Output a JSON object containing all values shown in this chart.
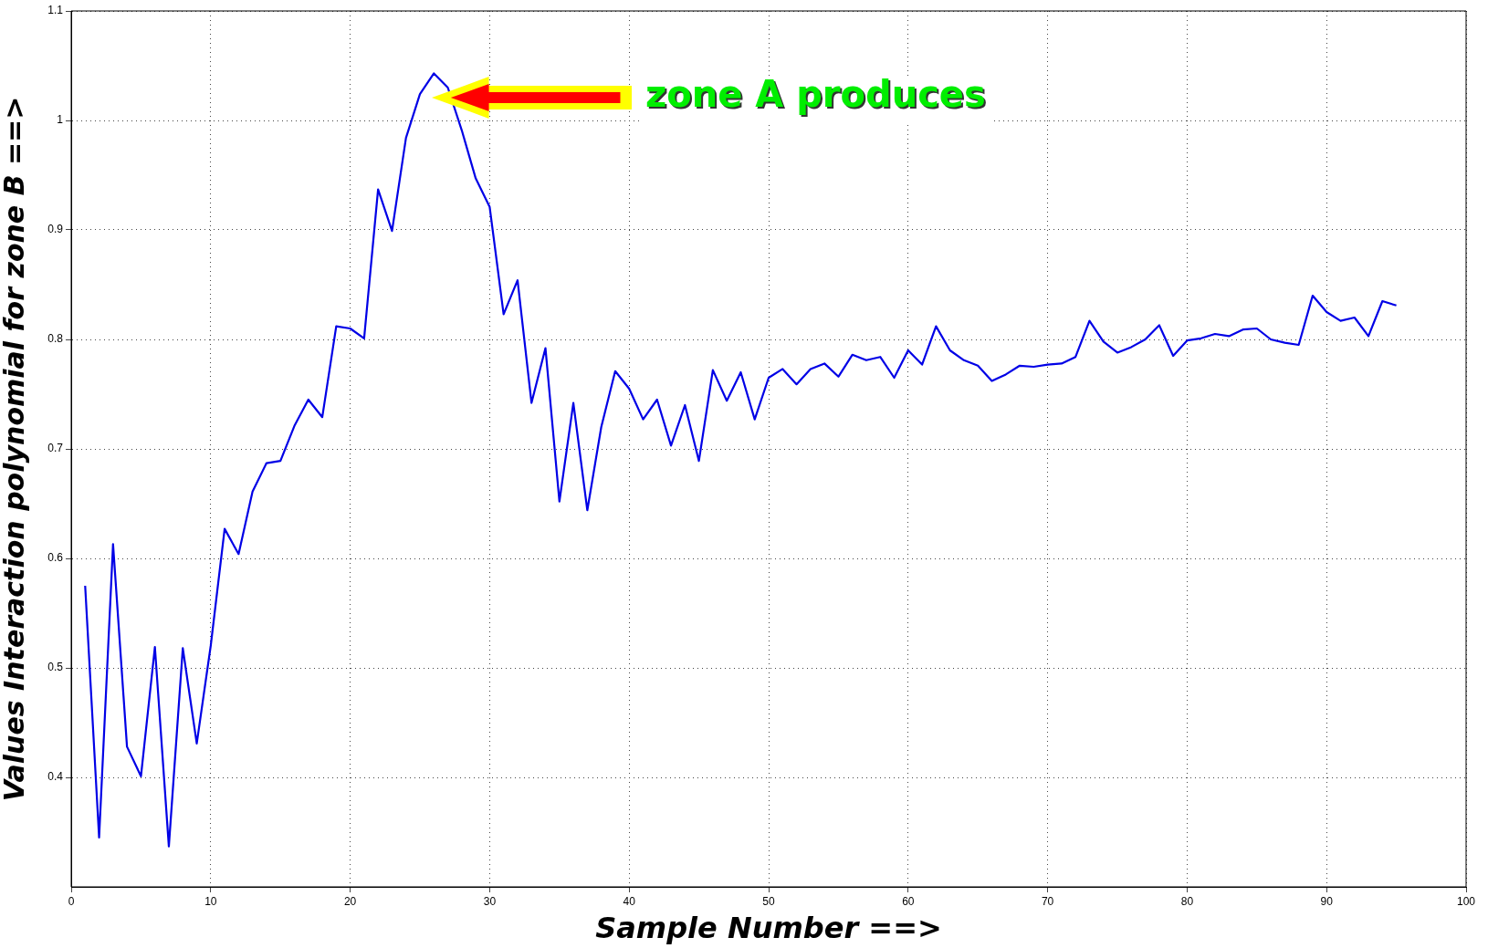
{
  "chart_data": {
    "type": "line",
    "xlabel": "Sample Number ==>",
    "ylabel": "Values Interaction polynomial for zone B ==>",
    "x": [
      1,
      2,
      3,
      4,
      5,
      6,
      7,
      8,
      9,
      10,
      11,
      12,
      13,
      14,
      15,
      16,
      17,
      18,
      19,
      20,
      21,
      22,
      23,
      24,
      25,
      26,
      27,
      28,
      29,
      30,
      31,
      32,
      33,
      34,
      35,
      36,
      37,
      38,
      39,
      40,
      41,
      42,
      43,
      44,
      45,
      46,
      47,
      48,
      49,
      50,
      51,
      52,
      53,
      54,
      55,
      56,
      57,
      58,
      59,
      60,
      61,
      62,
      63,
      64,
      65,
      66,
      67,
      68,
      69,
      70,
      71,
      72,
      73,
      74,
      75,
      76,
      77,
      78,
      79,
      80,
      81,
      82,
      83,
      84,
      85,
      86,
      87,
      88,
      89,
      90,
      91,
      92,
      93,
      94,
      95
    ],
    "series": [
      {
        "color": "#0000e6",
        "values": [
          0.575,
          0.345,
          0.613,
          0.428,
          0.401,
          0.519,
          0.337,
          0.518,
          0.431,
          0.52,
          0.627,
          0.604,
          0.661,
          0.687,
          0.689,
          0.721,
          0.745,
          0.729,
          0.812,
          0.81,
          0.801,
          0.937,
          0.899,
          0.984,
          1.024,
          1.043,
          1.03,
          0.991,
          0.947,
          0.921,
          0.823,
          0.854,
          0.742,
          0.792,
          0.652,
          0.742,
          0.644,
          0.72,
          0.771,
          0.755,
          0.727,
          0.745,
          0.703,
          0.74,
          0.689,
          0.772,
          0.744,
          0.77,
          0.727,
          0.765,
          0.773,
          0.759,
          0.773,
          0.778,
          0.766,
          0.786,
          0.781,
          0.784,
          0.765,
          0.79,
          0.777,
          0.812,
          0.79,
          0.781,
          0.776,
          0.762,
          0.768,
          0.776,
          0.775,
          0.777,
          0.778,
          0.784,
          0.817,
          0.798,
          0.788,
          0.793,
          0.8,
          0.813,
          0.785,
          0.799,
          0.801,
          0.805,
          0.803,
          0.809,
          0.81,
          0.8,
          0.797,
          0.795,
          0.84,
          0.825,
          0.817,
          0.82,
          0.803,
          0.835,
          0.831
        ]
      }
    ],
    "xlim": [
      0,
      100
    ],
    "xticks": [
      0,
      10,
      20,
      30,
      40,
      50,
      60,
      70,
      80,
      90,
      100
    ],
    "ylim": [
      0.3,
      1.1
    ],
    "yticks": [
      0.4,
      0.5,
      0.6,
      0.7,
      0.8,
      0.9,
      1,
      1.1
    ],
    "grid": true,
    "marker": "none",
    "line_style": "solid",
    "annotations": [
      "zone A produces"
    ]
  }
}
